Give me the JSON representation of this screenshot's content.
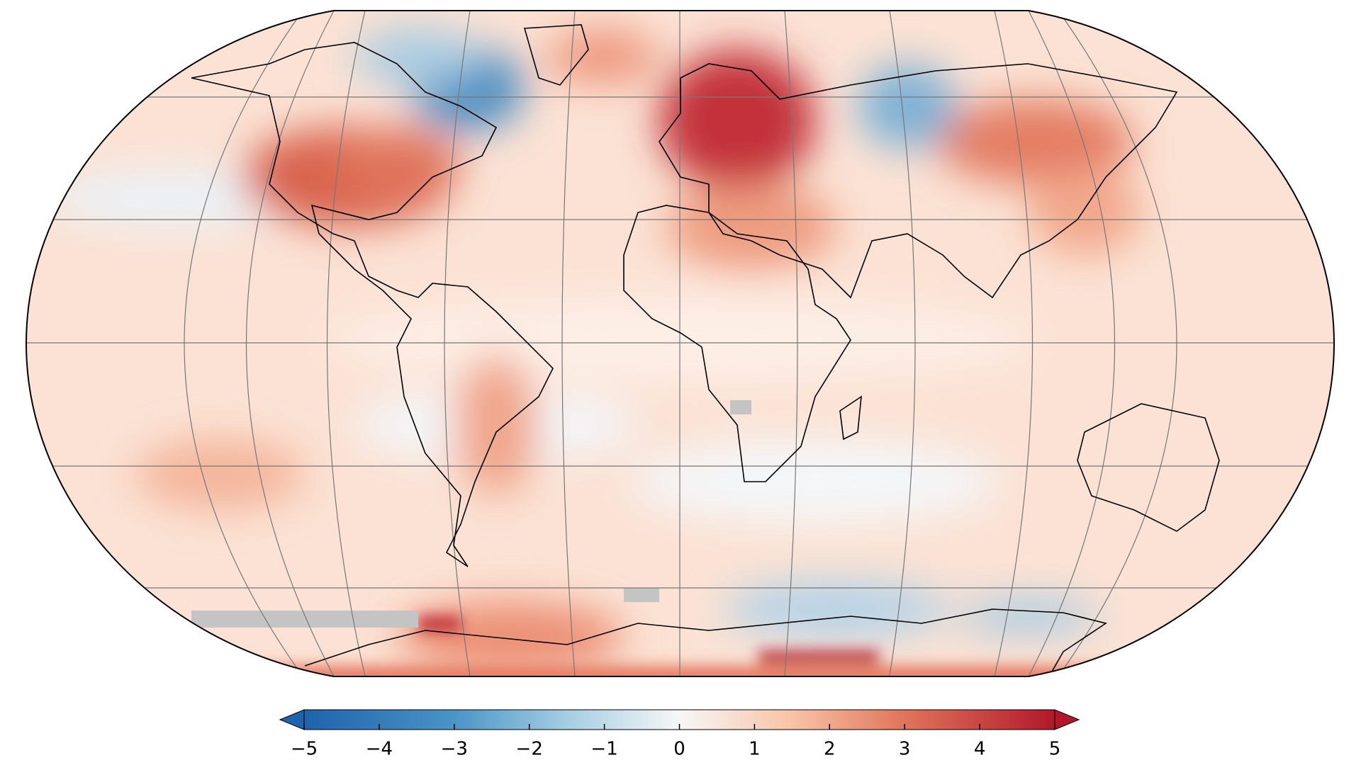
{
  "colorbar": {
    "range": [
      -5,
      5
    ],
    "ticks": [
      {
        "value": -5,
        "label": "−5"
      },
      {
        "value": -4,
        "label": "−4"
      },
      {
        "value": -3,
        "label": "−3"
      },
      {
        "value": -2,
        "label": "−2"
      },
      {
        "value": -1,
        "label": "−1"
      },
      0,
      1,
      2,
      3,
      4,
      5
    ]
  }
}
